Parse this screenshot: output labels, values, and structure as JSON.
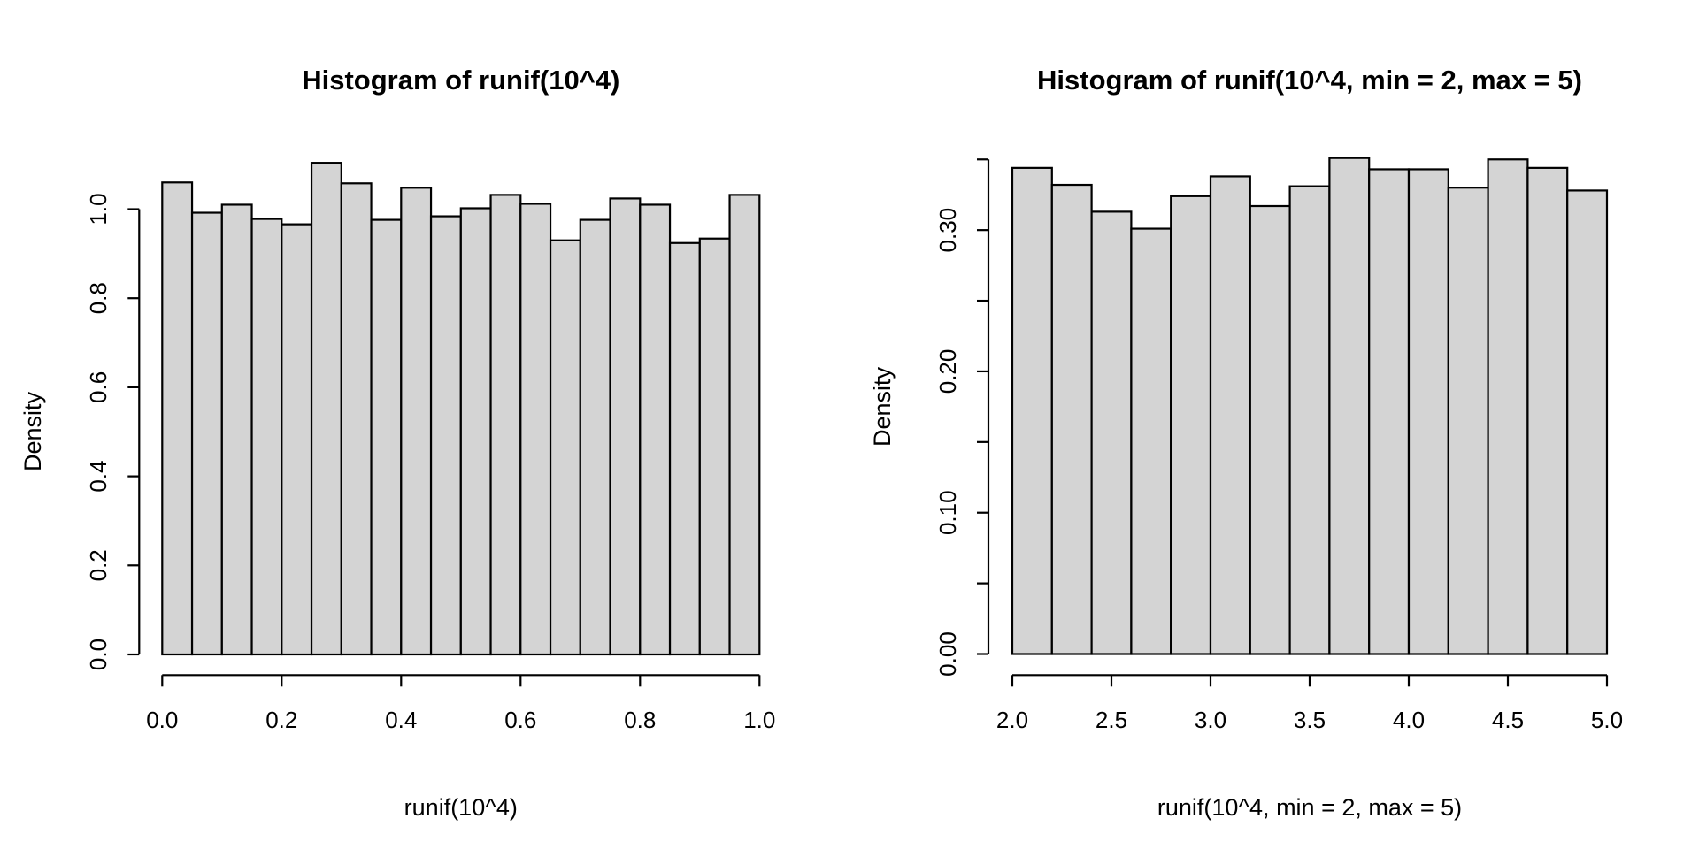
{
  "chart_data": [
    {
      "type": "bar",
      "subtype": "histogram",
      "title": "Histogram of runif(10^4)",
      "xlabel": "runif(10^4)",
      "ylabel": "Density",
      "bins": {
        "start": 0.0,
        "width": 0.05,
        "count": 20
      },
      "densities": [
        1.06,
        0.992,
        1.01,
        0.978,
        0.966,
        1.104,
        1.058,
        0.976,
        1.048,
        0.984,
        1.002,
        1.032,
        1.012,
        0.93,
        0.976,
        1.024,
        1.01,
        0.924,
        0.934,
        1.032
      ],
      "xlim": [
        0.0,
        1.0
      ],
      "ylim": [
        0.0,
        1.104
      ],
      "x_ticks": {
        "values": [
          0.0,
          0.2,
          0.4,
          0.6,
          0.8,
          1.0
        ],
        "labels": [
          "0.0",
          "0.2",
          "0.4",
          "0.6",
          "0.8",
          "1.0"
        ]
      },
      "y_ticks": {
        "values": [
          0.0,
          0.2,
          0.4,
          0.6,
          0.8,
          1.0
        ],
        "labels": [
          "0.0",
          "0.2",
          "0.4",
          "0.6",
          "0.8",
          "1.0"
        ]
      },
      "grid": false,
      "legend": null,
      "bar_fill": "#d4d4d4",
      "bar_stroke": "#000000",
      "text_color": "#000000",
      "background": "#ffffff"
    },
    {
      "type": "bar",
      "subtype": "histogram",
      "title": "Histogram of runif(10^4, min = 2, max = 5)",
      "xlabel": "runif(10^4, min = 2, max = 5)",
      "ylabel": "Density",
      "bins": {
        "start": 2.0,
        "width": 0.2,
        "count": 15
      },
      "densities": [
        0.344,
        0.332,
        0.313,
        0.301,
        0.324,
        0.338,
        0.317,
        0.331,
        0.351,
        0.343,
        0.343,
        0.33,
        0.35,
        0.344,
        0.328
      ],
      "xlim": [
        2.0,
        5.0
      ],
      "ylim": [
        0.0,
        0.351
      ],
      "x_ticks": {
        "values": [
          2.0,
          2.5,
          3.0,
          3.5,
          4.0,
          4.5,
          5.0
        ],
        "labels": [
          "2.0",
          "2.5",
          "3.0",
          "3.5",
          "4.0",
          "4.5",
          "5.0"
        ]
      },
      "y_ticks": {
        "values": [
          0.0,
          0.05,
          0.1,
          0.15,
          0.2,
          0.25,
          0.3,
          0.35
        ],
        "labels": [
          "0.00",
          "",
          "0.10",
          "",
          "0.20",
          "",
          "0.30",
          ""
        ]
      },
      "grid": false,
      "legend": null,
      "bar_fill": "#d4d4d4",
      "bar_stroke": "#000000",
      "text_color": "#000000",
      "background": "#ffffff"
    }
  ]
}
